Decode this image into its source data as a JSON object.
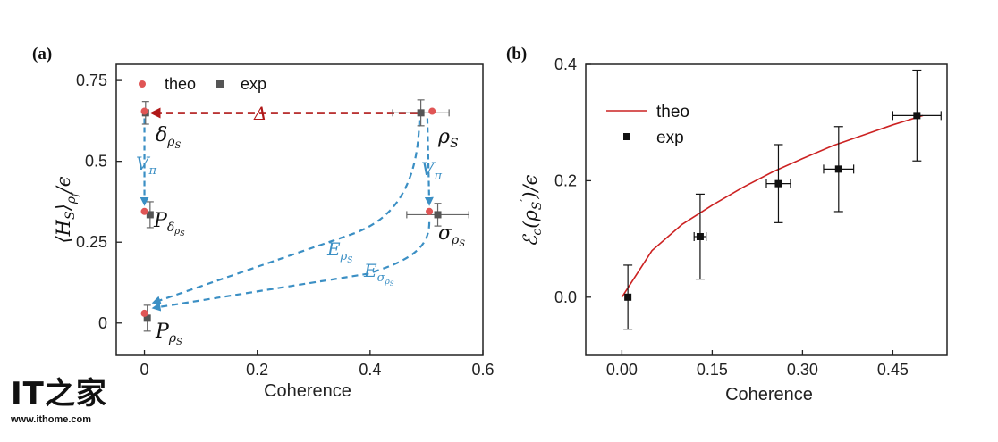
{
  "chart_data": [
    {
      "panel": "(a)",
      "type": "scatter",
      "xlabel": "Coherence",
      "ylabel": "⟨H_S⟩_{ρ_f}/ϵ",
      "xlim": [
        -0.05,
        0.6
      ],
      "ylim": [
        -0.1,
        0.8
      ],
      "xticks": [
        0,
        0.2,
        0.4,
        0.6
      ],
      "xtick_labels": [
        "0",
        "0.2",
        "0.4",
        "0.6"
      ],
      "yticks": [
        0,
        0.25,
        0.5,
        0.75
      ],
      "ytick_labels": [
        "0",
        "0.25",
        "0.5",
        "0.75"
      ],
      "legend": {
        "placement": "top-left",
        "entries": [
          "theo",
          "exp"
        ]
      },
      "colors": {
        "theo": "#e05555",
        "exp": "#555555",
        "arrow_blue": "#3b8fc4",
        "arrow_red": "#b01818"
      },
      "series": [
        {
          "name": "theo",
          "points": [
            {
              "x": 0,
              "y": 0.655
            },
            {
              "x": 0.51,
              "y": 0.655
            },
            {
              "x": 0,
              "y": 0.345
            },
            {
              "x": 0.505,
              "y": 0.345
            },
            {
              "x": 0,
              "y": 0.03
            }
          ]
        },
        {
          "name": "exp",
          "points": [
            {
              "x": 0.002,
              "y": 0.65,
              "yerr": 0.035,
              "xerr": 0
            },
            {
              "x": 0.49,
              "y": 0.65,
              "yerr": 0.04,
              "xerr": 0.05
            },
            {
              "x": 0.01,
              "y": 0.335,
              "yerr": 0.04,
              "xerr": 0
            },
            {
              "x": 0.52,
              "y": 0.335,
              "yerr": 0.035,
              "xerr": 0.055
            },
            {
              "x": 0.005,
              "y": 0.015,
              "yerr": 0.04,
              "xerr": 0
            }
          ]
        }
      ],
      "annotations": {
        "rho_s": "ρ_S",
        "delta": "δ_{ρ_S}",
        "p_delta": "P_{δ_{ρ_S}}",
        "sigma": "σ_{ρ_S}",
        "p_rho": "P_{ρ_S}",
        "delta_arrow": "Δ",
        "v_pi_left": "V_π",
        "v_pi_right": "V_π",
        "e_rho": "E_{ρ_S}",
        "e_sigma": "E_{σ_{ρ_S}}"
      }
    },
    {
      "panel": "(b)",
      "type": "line",
      "xlabel": "Coherence",
      "ylabel": "ℰ_c(ρ'_S)/ϵ",
      "xlim": [
        -0.06,
        0.54
      ],
      "ylim": [
        -0.1,
        0.4
      ],
      "xticks": [
        0,
        0.15,
        0.3,
        0.45
      ],
      "xtick_labels": [
        "0.00",
        "0.15",
        "0.30",
        "0.45"
      ],
      "yticks": [
        0,
        0.2,
        0.4
      ],
      "ytick_labels": [
        "0.0",
        "0.2",
        "0.4"
      ],
      "legend": {
        "placement": "top-left",
        "entries": [
          "theo",
          "exp"
        ]
      },
      "colors": {
        "theo": "#cc2222",
        "exp": "#111111"
      },
      "series": [
        {
          "name": "theo",
          "curve": "sqrt",
          "x": [
            0,
            0.05,
            0.1,
            0.15,
            0.2,
            0.25,
            0.3,
            0.35,
            0.4,
            0.45,
            0.5
          ],
          "y": [
            0,
            0.08,
            0.125,
            0.158,
            0.188,
            0.215,
            0.238,
            0.26,
            0.278,
            0.296,
            0.312
          ]
        },
        {
          "name": "exp",
          "points": [
            {
              "x": 0.01,
              "y": 0.0,
              "yerr": 0.055,
              "xerr": 0
            },
            {
              "x": 0.13,
              "y": 0.104,
              "yerr": 0.073,
              "xerr": 0.01
            },
            {
              "x": 0.26,
              "y": 0.195,
              "yerr": 0.067,
              "xerr": 0.02
            },
            {
              "x": 0.36,
              "y": 0.22,
              "yerr": 0.073,
              "xerr": 0.025
            },
            {
              "x": 0.49,
              "y": 0.312,
              "yerr": 0.078,
              "xerr": 0.04
            }
          ]
        }
      ]
    }
  ],
  "watermark": {
    "logo": "IT之家",
    "url": "www.ithome.com"
  }
}
